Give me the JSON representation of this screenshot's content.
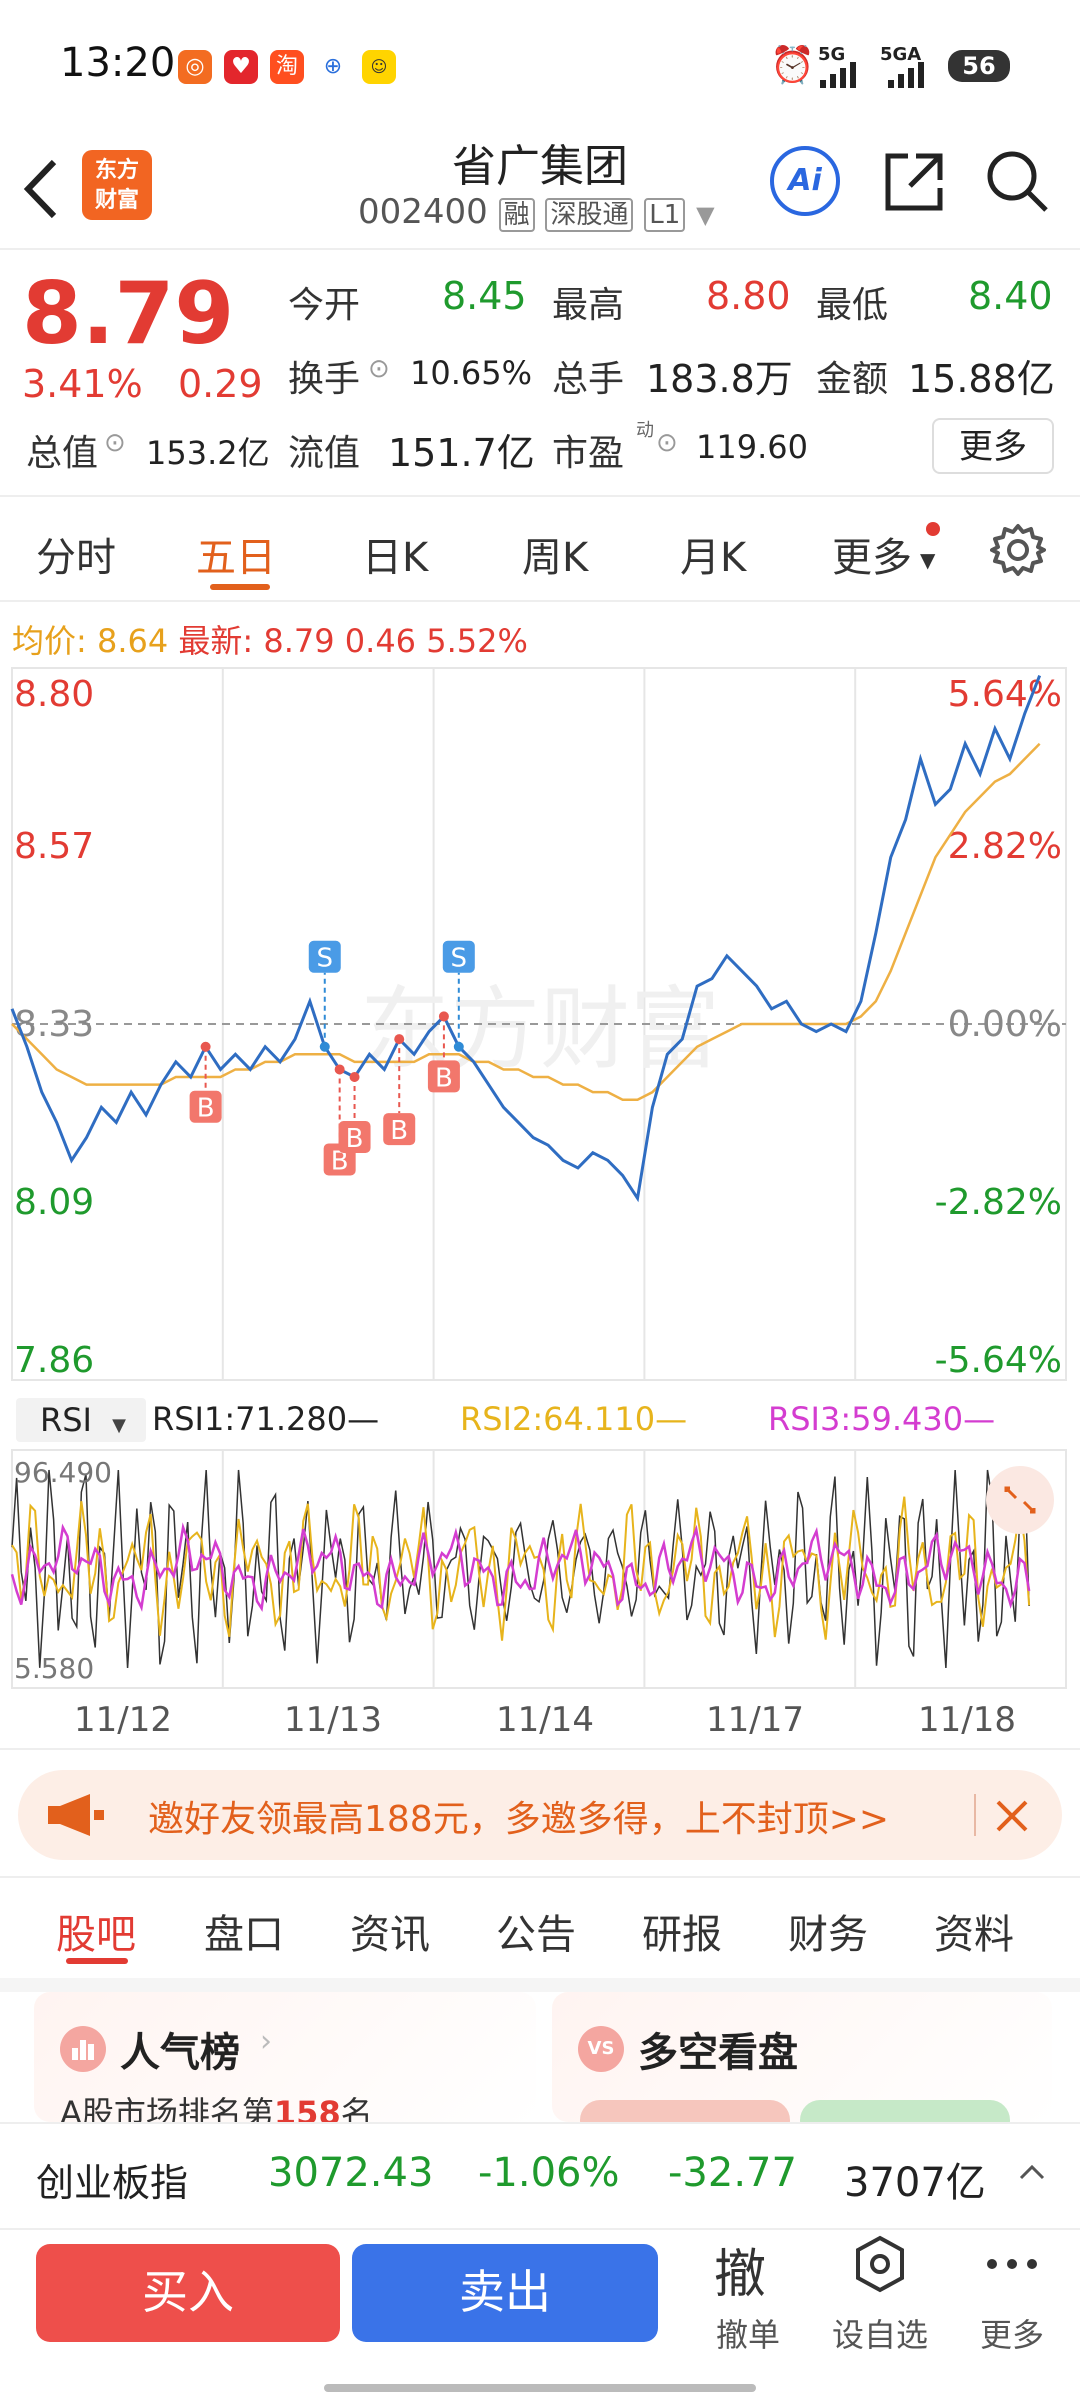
{
  "status_bar": {
    "time": "13:20",
    "network_1": "5G",
    "network_2": "5GA",
    "battery": "56"
  },
  "header": {
    "logo_line1": "东方",
    "logo_line2": "财富",
    "stock_name": "省广集团",
    "stock_code": "002400",
    "badge_margin": "融",
    "badge_connect": "深股通",
    "badge_level": "L1",
    "ai_label": "Ai"
  },
  "quote": {
    "price": "8.79",
    "change_pct": "3.41%",
    "change_amt": "0.29",
    "open_label": "今开",
    "open": "8.45",
    "high_label": "最高",
    "high": "8.80",
    "low_label": "最低",
    "low": "8.40",
    "turnover_label": "换手",
    "turnover": "10.65%",
    "volume_label": "总手",
    "volume": "183.8万",
    "amount_label": "金额",
    "amount": "15.88亿",
    "mktcap_label": "总值",
    "mktcap": "153.2亿",
    "float_label": "流值",
    "float_cap": "151.7亿",
    "pe_label": "市盈",
    "pe_sup": "动",
    "pe": "119.60",
    "more_button": "更多"
  },
  "period_tabs": [
    "分时",
    "五日",
    "日K",
    "周K",
    "月K",
    "更多"
  ],
  "active_tab": "五日",
  "chart_info": {
    "avg_label": "均价:",
    "avg": "8.64",
    "latest_label": "最新:",
    "latest": "8.79",
    "latest_chg": "0.46",
    "latest_pct": "5.52%"
  },
  "chart_data": {
    "type": "line",
    "x_labels": [
      "11/12",
      "11/13",
      "11/14",
      "11/17",
      "11/18"
    ],
    "y_left": [
      "8.80",
      "8.57",
      "8.33",
      "8.09",
      "7.86"
    ],
    "y_right": [
      "5.64%",
      "2.82%",
      "0.00%",
      "-2.82%",
      "-5.64%"
    ],
    "ylim": [
      7.86,
      8.8
    ],
    "baseline": 8.33,
    "price_series": [
      8.35,
      8.3,
      8.24,
      8.2,
      8.15,
      8.18,
      8.22,
      8.2,
      8.24,
      8.21,
      8.25,
      8.28,
      8.26,
      8.3,
      8.27,
      8.29,
      8.27,
      8.3,
      8.28,
      8.31,
      8.36,
      8.3,
      8.27,
      8.26,
      8.29,
      8.27,
      8.31,
      8.29,
      8.32,
      8.34,
      8.3,
      8.28,
      8.25,
      8.22,
      8.2,
      8.18,
      8.17,
      8.15,
      8.14,
      8.16,
      8.15,
      8.13,
      8.1,
      8.22,
      8.29,
      8.31,
      8.38,
      8.39,
      8.42,
      8.4,
      8.38,
      8.35,
      8.36,
      8.33,
      8.32,
      8.33,
      8.32,
      8.36,
      8.45,
      8.55,
      8.6,
      8.68,
      8.62,
      8.64,
      8.7,
      8.66,
      8.72,
      8.68,
      8.74,
      8.79
    ],
    "avg_series": [
      8.33,
      8.31,
      8.29,
      8.27,
      8.26,
      8.25,
      8.25,
      8.25,
      8.25,
      8.25,
      8.25,
      8.26,
      8.26,
      8.26,
      8.26,
      8.27,
      8.27,
      8.28,
      8.28,
      8.29,
      8.29,
      8.29,
      8.29,
      8.28,
      8.28,
      8.28,
      8.28,
      8.28,
      8.29,
      8.29,
      8.29,
      8.28,
      8.28,
      8.27,
      8.27,
      8.26,
      8.26,
      8.25,
      8.25,
      8.24,
      8.24,
      8.23,
      8.23,
      8.24,
      8.26,
      8.28,
      8.3,
      8.31,
      8.32,
      8.33,
      8.33,
      8.33,
      8.33,
      8.33,
      8.33,
      8.33,
      8.33,
      8.34,
      8.36,
      8.4,
      8.45,
      8.5,
      8.55,
      8.58,
      8.61,
      8.63,
      8.65,
      8.66,
      8.68,
      8.7
    ],
    "buy_markers": [
      13,
      22,
      23,
      26,
      29
    ],
    "sell_markers": [
      21,
      30
    ],
    "marker_buy_label": "B",
    "marker_sell_label": "S",
    "watermark": "东方财富"
  },
  "rsi": {
    "selector": "RSI",
    "rsi1": "RSI1:71.280—",
    "rsi2": "RSI2:64.110—",
    "rsi3": "RSI3:59.430—",
    "max": "96.490",
    "min": "5.580"
  },
  "banner": {
    "text": "邀好友领最高188元，多邀多得，上不封顶>>"
  },
  "nav_tabs": [
    "股吧",
    "盘口",
    "资讯",
    "公告",
    "研报",
    "财务",
    "资料"
  ],
  "active_nav": "股吧",
  "cards": {
    "card1_title": "人气榜",
    "card1_sub_prefix": "A股市场排名第",
    "card1_rank": "158",
    "card1_sub_suffix": "名",
    "card2_title": "多空看盘"
  },
  "index_bar": {
    "name": "创业板指",
    "value": "3072.43",
    "pct": "-1.06%",
    "chg": "-32.77",
    "amount": "3707亿"
  },
  "actions": {
    "buy": "买入",
    "sell": "卖出",
    "cancel_char": "撤",
    "cancel_label": "撤单",
    "watch_label": "设自选",
    "more_label": "更多"
  }
}
